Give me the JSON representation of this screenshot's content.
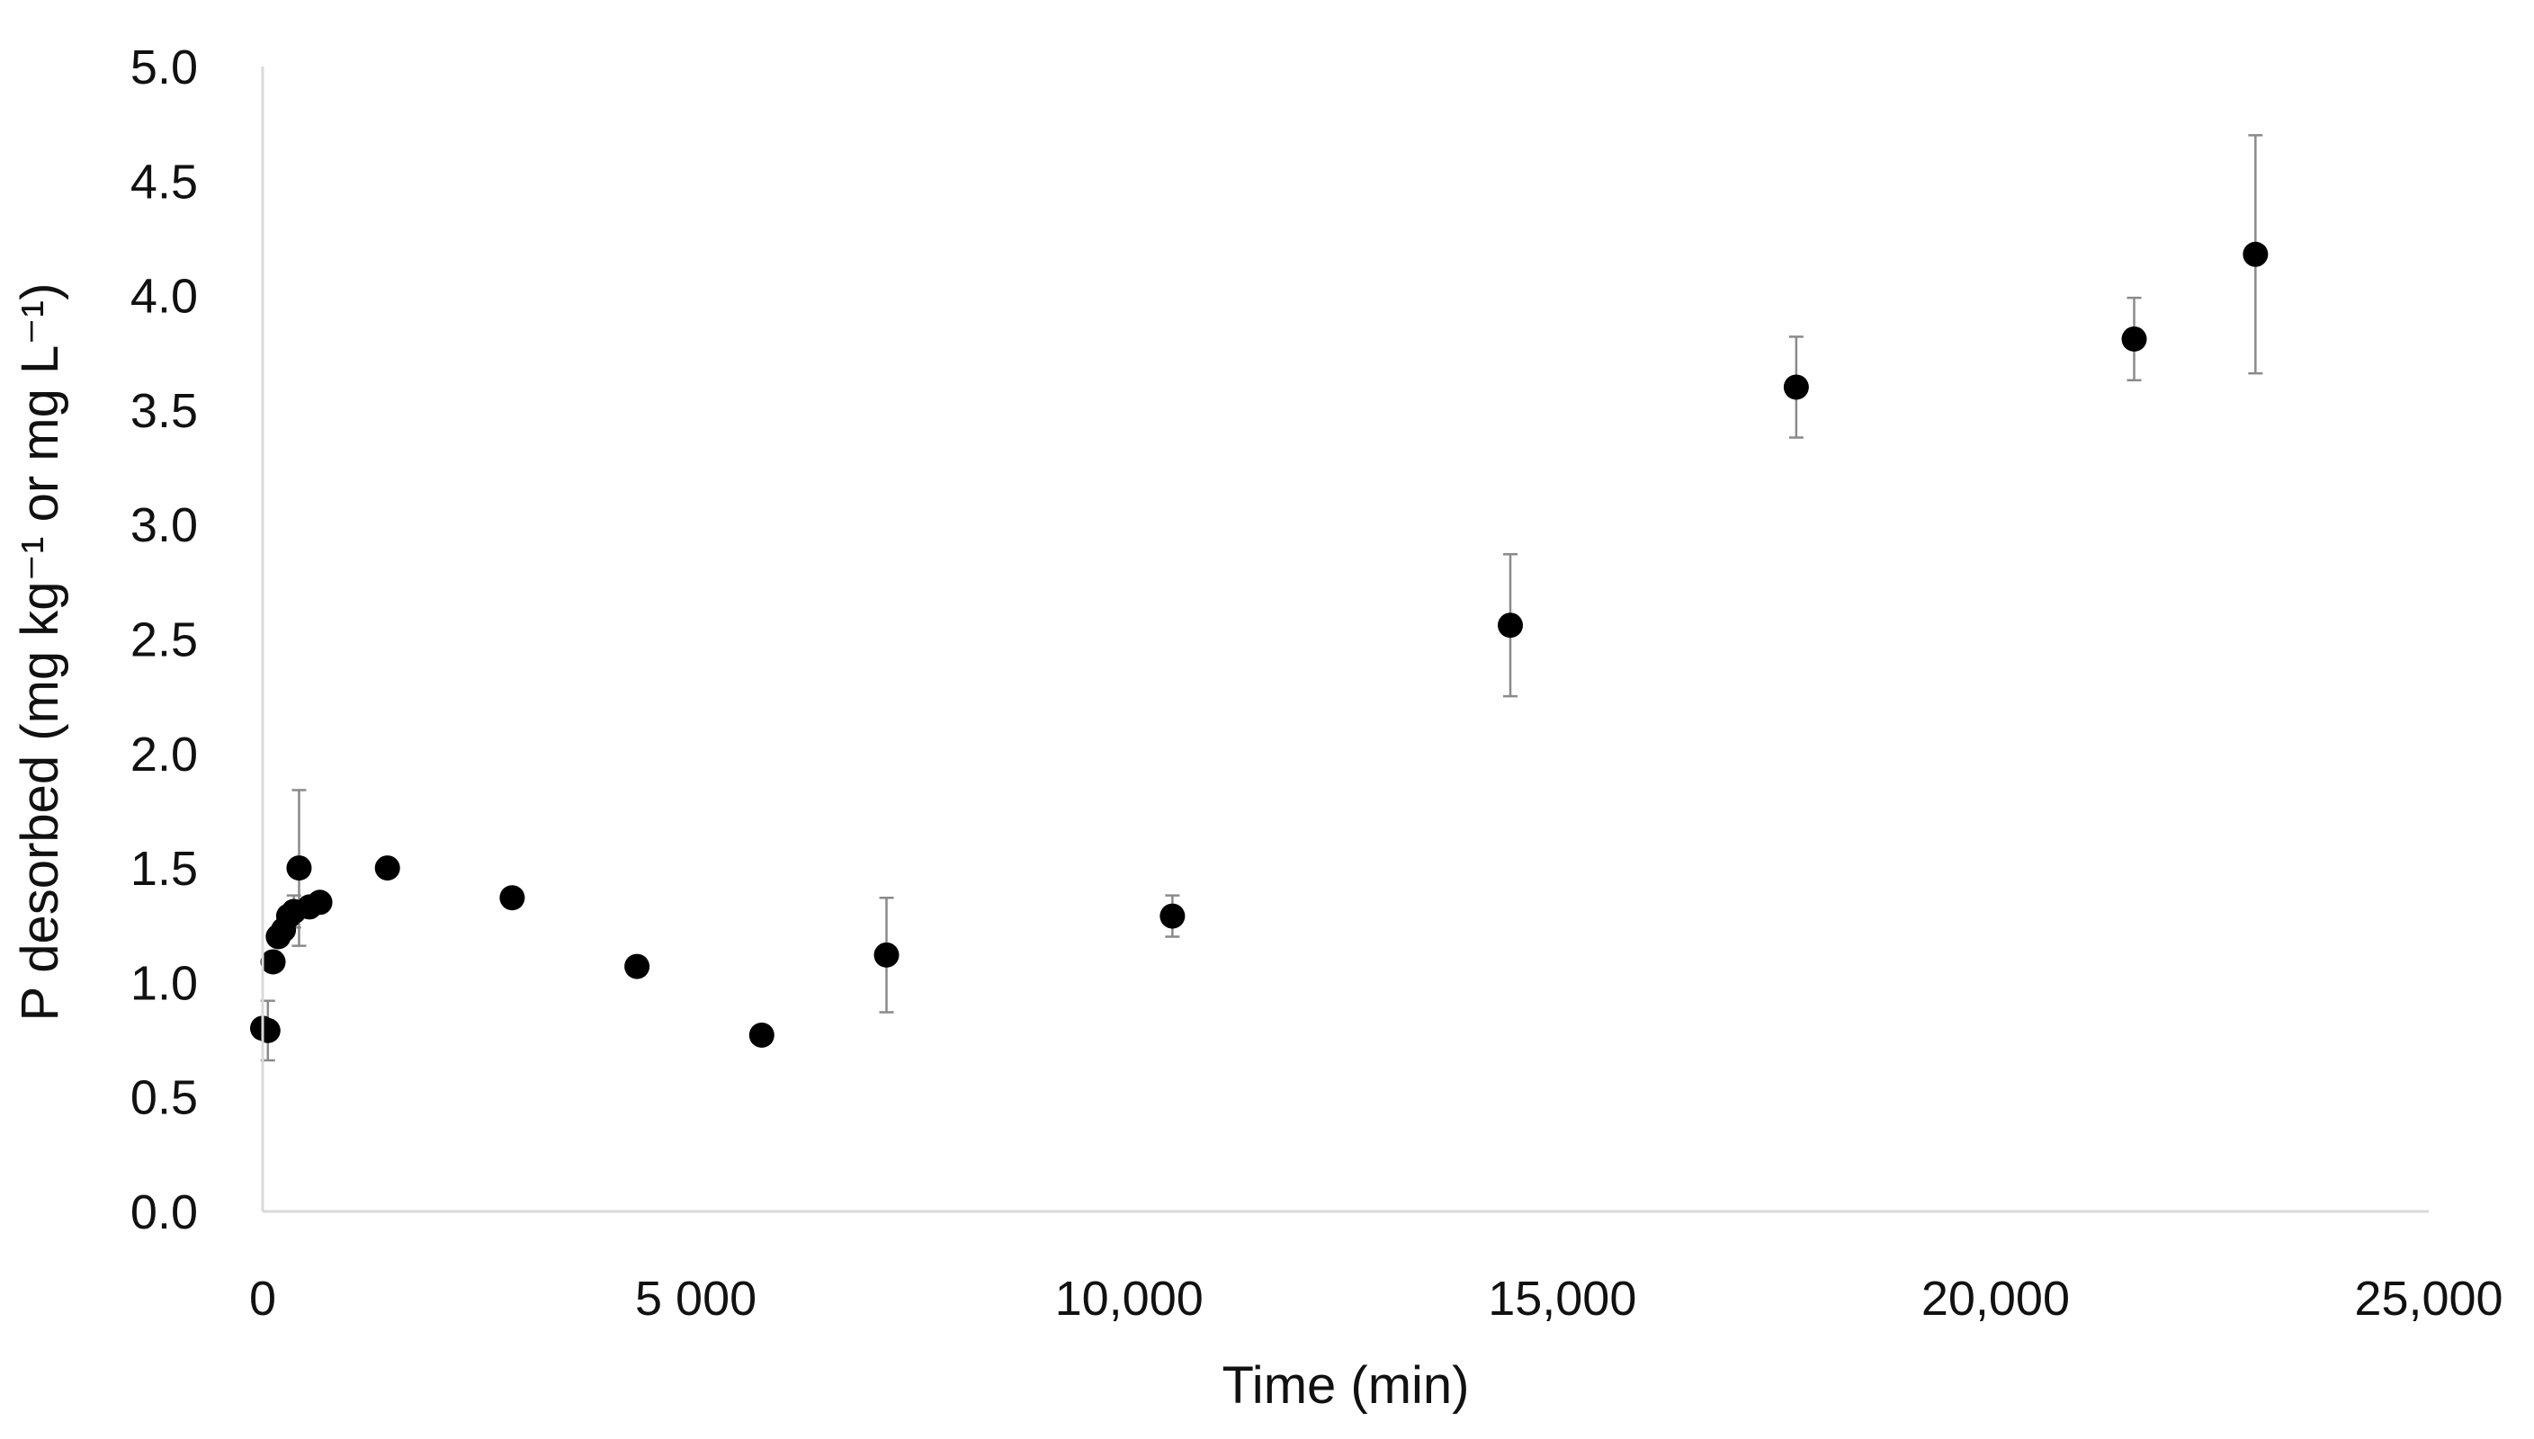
{
  "chart_data": {
    "type": "scatter",
    "xlabel": "Time (min)",
    "ylabel": "P desorbed  (mg kg⁻¹ or  mg L⁻¹)",
    "xlim": [
      0,
      25000
    ],
    "ylim": [
      0,
      5.0
    ],
    "xticks": [
      0,
      5000,
      10000,
      15000,
      20000,
      25000
    ],
    "xtick_labels": [
      "0",
      "5 000",
      "10,000",
      "15,000",
      "20,000",
      "25,000"
    ],
    "yticks": [
      0,
      0.5,
      1.0,
      1.5,
      2.0,
      2.5,
      3.0,
      3.5,
      4.0,
      4.5,
      5.0
    ],
    "ytick_labels": [
      "0.0",
      "0.5",
      "1.0",
      "1.5",
      "2.0",
      "2.5",
      "3.0",
      "3.5",
      "4.0",
      "4.5",
      "5.0"
    ],
    "grid": false,
    "marker_color": "#000000",
    "errorbar_color": "#8a8a8a",
    "points": [
      {
        "x": 0,
        "y": 0.8,
        "yerr": 0.0
      },
      {
        "x": 60,
        "y": 0.79,
        "yerr": 0.13
      },
      {
        "x": 120,
        "y": 1.09,
        "yerr": 0.0
      },
      {
        "x": 180,
        "y": 1.2,
        "yerr": 0.0
      },
      {
        "x": 240,
        "y": 1.23,
        "yerr": 0.0
      },
      {
        "x": 300,
        "y": 1.29,
        "yerr": 0.0
      },
      {
        "x": 360,
        "y": 1.31,
        "yerr": 0.07
      },
      {
        "x": 420,
        "y": 1.5,
        "yerr": 0.34
      },
      {
        "x": 540,
        "y": 1.33,
        "yerr": 0.0
      },
      {
        "x": 660,
        "y": 1.35,
        "yerr": 0.0
      },
      {
        "x": 1440,
        "y": 1.5,
        "yerr": 0.0
      },
      {
        "x": 2880,
        "y": 1.37,
        "yerr": 0.0
      },
      {
        "x": 4320,
        "y": 1.07,
        "yerr": 0.0
      },
      {
        "x": 5760,
        "y": 0.77,
        "yerr": 0.0
      },
      {
        "x": 7200,
        "y": 1.12,
        "yerr": 0.25
      },
      {
        "x": 10500,
        "y": 1.29,
        "yerr": 0.09
      },
      {
        "x": 14400,
        "y": 2.56,
        "yerr": 0.31
      },
      {
        "x": 17700,
        "y": 3.6,
        "yerr": 0.22
      },
      {
        "x": 21600,
        "y": 3.81,
        "yerr": 0.18
      },
      {
        "x": 23000,
        "y": 4.18,
        "yerr": 0.52
      }
    ]
  }
}
